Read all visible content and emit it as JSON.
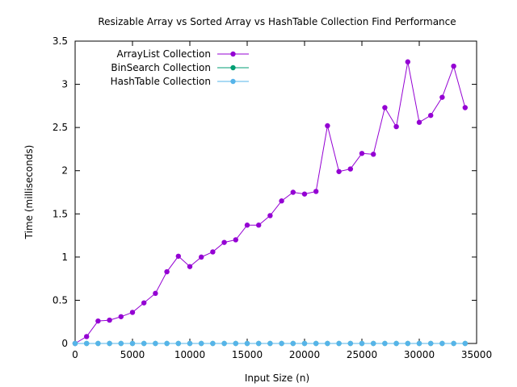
{
  "chart_data": {
    "type": "line",
    "title": "Resizable Array vs Sorted Array vs HashTable Collection Find Performance",
    "xlabel": "Input Size (n)",
    "ylabel": "Time (milliseconds)",
    "xlim": [
      0,
      35000
    ],
    "ylim": [
      0,
      3.5
    ],
    "xticks": [
      "0",
      "5000",
      "10000",
      "15000",
      "20000",
      "25000",
      "30000",
      "35000"
    ],
    "yticks": [
      "0",
      "0.5",
      "1",
      "1.5",
      "2",
      "2.5",
      "3",
      "3.5"
    ],
    "grid": false,
    "legend_position": "top-left",
    "x": [
      0,
      1000,
      2000,
      3000,
      4000,
      5000,
      6000,
      7000,
      8000,
      9000,
      10000,
      11000,
      12000,
      13000,
      14000,
      15000,
      16000,
      17000,
      18000,
      19000,
      20000,
      21000,
      22000,
      23000,
      24000,
      25000,
      26000,
      27000,
      28000,
      29000,
      30000,
      31000,
      32000,
      33000,
      34000
    ],
    "series": [
      {
        "name": "ArrayList Collection",
        "color": "#9400d3",
        "values": [
          0.0,
          0.08,
          0.26,
          0.27,
          0.31,
          0.36,
          0.47,
          0.58,
          0.83,
          1.01,
          0.89,
          1.0,
          1.06,
          1.17,
          1.2,
          1.37,
          1.37,
          1.48,
          1.65,
          1.75,
          1.73,
          1.76,
          2.52,
          1.99,
          2.02,
          2.2,
          2.19,
          2.73,
          2.51,
          3.26,
          2.56,
          2.64,
          2.85,
          3.21,
          2.73
        ]
      },
      {
        "name": "BinSearch Collection",
        "color": "#009e73",
        "values": [
          0,
          0,
          0,
          0,
          0,
          0,
          0,
          0,
          0,
          0,
          0,
          0,
          0,
          0,
          0,
          0,
          0,
          0,
          0,
          0,
          0,
          0,
          0,
          0,
          0,
          0,
          0,
          0,
          0,
          0,
          0,
          0,
          0,
          0,
          0
        ]
      },
      {
        "name": "HashTable Collection",
        "color": "#56b4e9",
        "values": [
          0,
          0,
          0,
          0,
          0,
          0,
          0,
          0,
          0,
          0,
          0,
          0,
          0,
          0,
          0,
          0,
          0,
          0,
          0,
          0,
          0,
          0,
          0,
          0,
          0,
          0,
          0,
          0,
          0,
          0,
          0,
          0,
          0,
          0,
          0
        ]
      }
    ]
  }
}
